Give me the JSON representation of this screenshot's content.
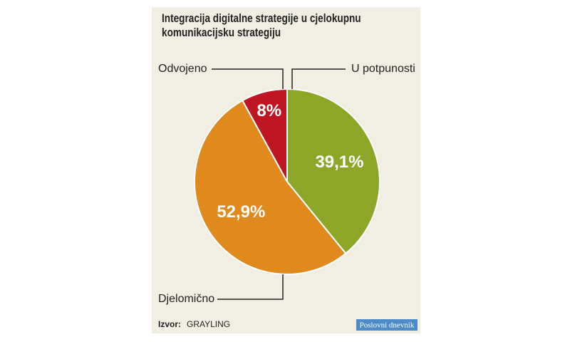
{
  "chart_data": {
    "type": "pie",
    "title": "Integracija digitalne strategije u cjelokupnu komunikacijsku strategiju",
    "categories": [
      "U potpunosti",
      "Djelomično",
      "Odvojeno"
    ],
    "values": [
      39.1,
      52.9,
      8
    ],
    "value_labels": [
      "39,1%",
      "52,9%",
      "8%"
    ],
    "colors": [
      "#8ea628",
      "#e0891d",
      "#be1622"
    ],
    "source_label": "Izvor:",
    "source": "GRAYLING",
    "logo": "Poslovni dnevnik"
  }
}
